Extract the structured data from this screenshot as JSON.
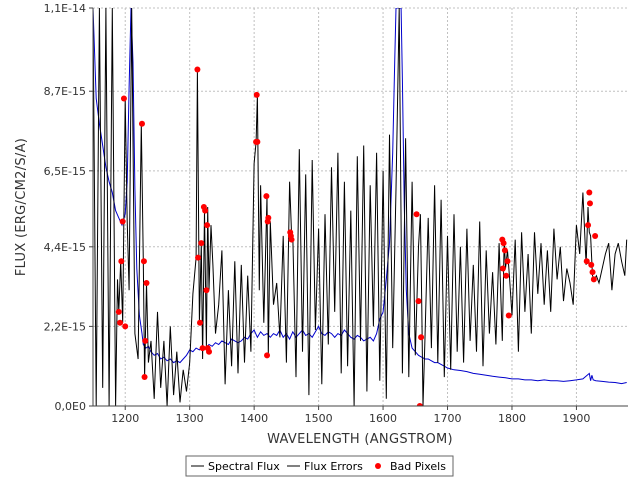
{
  "chart_data": {
    "type": "line",
    "title": "",
    "xlabel": "WAVELENGTH (ANGSTROM)",
    "ylabel": "FLUX (ERG/CM2/S/A)",
    "xlim": [
      1150,
      1980
    ],
    "ylim": [
      0,
      1.1e-14
    ],
    "x_ticks": [
      1200,
      1300,
      1400,
      1500,
      1600,
      1700,
      1800,
      1900
    ],
    "x_tick_labels": [
      "1200",
      "1300",
      "1400",
      "1500",
      "1600",
      "1700",
      "1800",
      "1900"
    ],
    "y_ticks": [
      0,
      2.2e-15,
      4.4e-15,
      6.5e-15,
      8.7e-15,
      1.1e-14
    ],
    "y_tick_labels": [
      "0,0E0",
      "2,2E-15",
      "4,4E-15",
      "6,5E-15",
      "8,7E-15",
      "1,1E-14"
    ],
    "grid": true,
    "legend_position": "bottom",
    "series": [
      {
        "name": "Spectral Flux",
        "color": "#000000",
        "style": "line",
        "x": [
          1150,
          1155,
          1160,
          1165,
          1170,
          1175,
          1180,
          1185,
          1188,
          1190,
          1193,
          1196,
          1200,
          1203,
          1206,
          1210,
          1215,
          1220,
          1225,
          1228,
          1230,
          1233,
          1236,
          1240,
          1245,
          1250,
          1255,
          1260,
          1265,
          1270,
          1275,
          1280,
          1285,
          1290,
          1295,
          1300,
          1305,
          1310,
          1312,
          1315,
          1318,
          1320,
          1323,
          1326,
          1328,
          1330,
          1333,
          1336,
          1340,
          1345,
          1350,
          1355,
          1360,
          1365,
          1370,
          1375,
          1380,
          1385,
          1390,
          1395,
          1400,
          1403,
          1405,
          1408,
          1410,
          1415,
          1420,
          1422,
          1425,
          1430,
          1435,
          1440,
          1445,
          1450,
          1455,
          1458,
          1460,
          1465,
          1470,
          1475,
          1480,
          1485,
          1490,
          1495,
          1500,
          1505,
          1510,
          1515,
          1520,
          1525,
          1530,
          1535,
          1540,
          1545,
          1550,
          1555,
          1560,
          1565,
          1570,
          1575,
          1580,
          1585,
          1590,
          1595,
          1600,
          1605,
          1610,
          1615,
          1620,
          1625,
          1630,
          1635,
          1640,
          1645,
          1650,
          1655,
          1658,
          1660,
          1662,
          1665,
          1670,
          1675,
          1680,
          1685,
          1690,
          1695,
          1700,
          1705,
          1710,
          1715,
          1720,
          1725,
          1730,
          1735,
          1740,
          1745,
          1750,
          1755,
          1760,
          1765,
          1770,
          1775,
          1780,
          1785,
          1788,
          1790,
          1793,
          1796,
          1800,
          1805,
          1810,
          1815,
          1820,
          1825,
          1830,
          1835,
          1840,
          1845,
          1850,
          1855,
          1860,
          1865,
          1870,
          1875,
          1880,
          1885,
          1890,
          1895,
          1900,
          1905,
          1910,
          1915,
          1918,
          1920,
          1922,
          1925,
          1928,
          1931,
          1935,
          1940,
          1945,
          1950,
          1955,
          1960,
          1965,
          1970,
          1975,
          1978
        ],
        "y": [
          1.1e-14,
          0,
          1.1e-14,
          5e-16,
          1.1e-14,
          0,
          1.1e-14,
          0,
          3.5e-15,
          2.6e-15,
          4e-15,
          2.3e-15,
          8.5e-15,
          5.1e-15,
          3.2e-15,
          1.1e-14,
          2e-15,
          1.3e-15,
          7.8e-15,
          4e-15,
          8e-16,
          3.4e-15,
          1.2e-15,
          1.8e-15,
          2e-16,
          2.6e-15,
          5e-16,
          1.8e-15,
          0,
          2.2e-15,
          3e-16,
          1.5e-15,
          1e-16,
          1e-15,
          4e-16,
          1.2e-15,
          3.1e-15,
          4.1e-15,
          9.3e-15,
          2.3e-15,
          4.5e-15,
          1.3e-15,
          5.4e-15,
          1.6e-15,
          5.5e-15,
          3.2e-15,
          5e-15,
          3.9e-15,
          2e-15,
          2.8e-15,
          4.3e-15,
          6e-16,
          3.2e-15,
          1.1e-15,
          4e-15,
          9e-16,
          3.9e-15,
          1.2e-15,
          3.6e-15,
          1.5e-15,
          6.7e-15,
          7.3e-15,
          8.6e-15,
          3.2e-15,
          6.1e-15,
          2.3e-15,
          5.8e-15,
          1.4e-15,
          5.1e-15,
          2.8e-15,
          3.4e-15,
          1.9e-15,
          4.7e-15,
          1.2e-15,
          6.2e-15,
          4.8e-15,
          4.7e-15,
          8e-16,
          7.1e-15,
          1.5e-15,
          6.4e-15,
          3e-16,
          6.8e-15,
          2.1e-15,
          4.9e-15,
          6e-16,
          5.3e-15,
          1.7e-15,
          6.6e-15,
          2.6e-15,
          7e-15,
          9e-16,
          6.2e-15,
          1.1e-15,
          5.4e-15,
          0,
          6.9e-15,
          1.8e-15,
          7.2e-15,
          4e-16,
          6.1e-15,
          2.2e-15,
          7e-15,
          7e-16,
          6.5e-15,
          2e-16,
          7.5e-15,
          1.6e-15,
          6e-15,
          1.1e-14,
          9e-16,
          7.4e-15,
          8e-16,
          6.2e-15,
          1.4e-15,
          4.4e-15,
          5.3e-15,
          2.9e-15,
          0,
          1.9e-15,
          5.2e-15,
          1.6e-15,
          6.1e-15,
          1.2e-15,
          5.7e-15,
          8e-16,
          4.7e-15,
          1e-15,
          5.3e-15,
          1.5e-15,
          4.4e-15,
          1.2e-15,
          4.9e-15,
          1.8e-15,
          3.9e-15,
          1.5e-15,
          5.1e-15,
          1.1e-15,
          4.3e-15,
          2e-15,
          3.7e-15,
          1.7e-15,
          4.5e-15,
          1.8e-15,
          4.6e-15,
          3.8e-15,
          4.3e-15,
          3.6e-15,
          2.5e-15,
          4.6e-15,
          1.5e-15,
          4.8e-15,
          2.6e-15,
          4.2e-15,
          2e-15,
          4.8e-15,
          3.1e-15,
          4.5e-15,
          2.8e-15,
          4.3e-15,
          2.6e-15,
          4.9e-15,
          3.5e-15,
          4.4e-15,
          2.9e-15,
          3.8e-15,
          3.4e-15,
          2.8e-15,
          5e-15,
          4.2e-15,
          5.9e-15,
          3.9e-15,
          5.5e-15,
          4.8e-15,
          4.7e-15,
          3.6e-15,
          3.5e-15,
          3.6e-15,
          3.4e-15,
          3.8e-15,
          4.2e-15,
          4.5e-15,
          3.2e-15,
          4.2e-15,
          4.5e-15,
          4e-15,
          3.6e-15,
          4.6e-15
        ]
      },
      {
        "name": "Flux Errors",
        "color": "#0000cc",
        "style": "line",
        "x": [
          1150,
          1155,
          1160,
          1165,
          1170,
          1175,
          1180,
          1185,
          1190,
          1195,
          1200,
          1203,
          1206,
          1209,
          1212,
          1215,
          1218,
          1222,
          1226,
          1228,
          1232,
          1236,
          1240,
          1245,
          1250,
          1255,
          1260,
          1265,
          1270,
          1275,
          1280,
          1285,
          1290,
          1295,
          1300,
          1305,
          1310,
          1315,
          1320,
          1325,
          1330,
          1335,
          1340,
          1345,
          1350,
          1355,
          1360,
          1365,
          1370,
          1375,
          1380,
          1385,
          1390,
          1395,
          1400,
          1405,
          1410,
          1415,
          1420,
          1425,
          1430,
          1435,
          1440,
          1445,
          1450,
          1455,
          1460,
          1465,
          1470,
          1475,
          1480,
          1485,
          1490,
          1495,
          1500,
          1505,
          1510,
          1515,
          1520,
          1525,
          1530,
          1535,
          1540,
          1545,
          1550,
          1555,
          1560,
          1565,
          1570,
          1575,
          1580,
          1585,
          1590,
          1595,
          1600,
          1605,
          1610,
          1615,
          1618,
          1620,
          1622,
          1625,
          1628,
          1630,
          1633,
          1636,
          1640,
          1645,
          1650,
          1655,
          1660,
          1665,
          1670,
          1675,
          1680,
          1685,
          1690,
          1695,
          1700,
          1710,
          1720,
          1730,
          1740,
          1750,
          1760,
          1770,
          1780,
          1790,
          1800,
          1810,
          1820,
          1830,
          1840,
          1850,
          1860,
          1870,
          1880,
          1890,
          1900,
          1910,
          1920,
          1922,
          1924,
          1926,
          1930,
          1940,
          1950,
          1960,
          1970,
          1978
        ],
        "y": [
          1.1e-14,
          8.5e-15,
          7.8e-15,
          7.2e-15,
          6.6e-15,
          6.2e-15,
          5.9e-15,
          5.4e-15,
          5.2e-15,
          5e-15,
          5.3e-15,
          6.2e-15,
          8.8e-15,
          1.1e-14,
          9.5e-15,
          6e-15,
          3.8e-15,
          2.5e-15,
          2e-15,
          1.7e-15,
          1.6e-15,
          1.65e-15,
          1.5e-15,
          1.4e-15,
          1.45e-15,
          1.3e-15,
          1.35e-15,
          1.25e-15,
          1.3e-15,
          1.2e-15,
          1.25e-15,
          1.2e-15,
          1.3e-15,
          1.4e-15,
          1.55e-15,
          1.5e-15,
          1.6e-15,
          1.55e-15,
          1.65e-15,
          1.6e-15,
          1.7e-15,
          1.65e-15,
          1.75e-15,
          1.7e-15,
          1.8e-15,
          1.75e-15,
          1.7e-15,
          1.85e-15,
          1.8e-15,
          1.75e-15,
          1.8e-15,
          1.9e-15,
          1.85e-15,
          2e-15,
          2.1e-15,
          1.9e-15,
          2.05e-15,
          1.95e-15,
          2e-15,
          1.9e-15,
          2e-15,
          1.95e-15,
          2.1e-15,
          1.9e-15,
          2e-15,
          1.85e-15,
          2.05e-15,
          1.9e-15,
          2e-15,
          2.1e-15,
          1.95e-15,
          2e-15,
          1.9e-15,
          2.05e-15,
          2.2e-15,
          2e-15,
          1.95e-15,
          2.05e-15,
          2e-15,
          1.9e-15,
          2e-15,
          1.95e-15,
          2.1e-15,
          2e-15,
          1.9e-15,
          1.85e-15,
          1.95e-15,
          1.9e-15,
          1.8e-15,
          1.85e-15,
          1.9e-15,
          1.8e-15,
          2e-15,
          2.4e-15,
          2.6e-15,
          3.5e-15,
          4.5e-15,
          7e-15,
          9.5e-15,
          1.1e-14,
          1.1e-14,
          1.1e-14,
          1.1e-14,
          9e-15,
          5.5e-15,
          3.2e-15,
          2e-15,
          1.6e-15,
          1.5e-15,
          1.4e-15,
          1.35e-15,
          1.3e-15,
          1.3e-15,
          1.25e-15,
          1.2e-15,
          1.2e-15,
          1.15e-15,
          1.1e-15,
          1.05e-15,
          1e-15,
          9.8e-16,
          9.5e-16,
          9e-16,
          8.8e-16,
          8.5e-16,
          8.2e-16,
          8e-16,
          7.8e-16,
          7.5e-16,
          7.5e-16,
          7.2e-16,
          7.2e-16,
          7e-16,
          7.2e-16,
          7e-16,
          7e-16,
          6.8e-16,
          7e-16,
          7.2e-16,
          7.5e-16,
          9e-16,
          7e-16,
          8.5e-16,
          7.2e-16,
          7e-16,
          6.8e-16,
          6.6e-16,
          6.5e-16,
          6.2e-16,
          6.5e-16
        ]
      },
      {
        "name": "Bad Pixels",
        "color": "#ff0000",
        "style": "scatter",
        "x": [
          1190,
          1192,
          1194,
          1196,
          1198,
          1200,
          1226,
          1229,
          1230,
          1231,
          1233,
          1312,
          1313,
          1316,
          1318,
          1320,
          1322,
          1324,
          1326,
          1327,
          1328,
          1330,
          1403,
          1404,
          1405,
          1419,
          1420,
          1421,
          1422,
          1456,
          1457,
          1458,
          1652,
          1655,
          1657,
          1659,
          1785,
          1786,
          1787,
          1789,
          1791,
          1793,
          1795,
          1916,
          1918,
          1920,
          1921,
          1923,
          1925,
          1927,
          1929
        ],
        "y": [
          2.6e-15,
          2.3e-15,
          4e-15,
          5.1e-15,
          8.5e-15,
          2.2e-15,
          7.8e-15,
          4e-15,
          8e-16,
          1.8e-15,
          3.4e-15,
          9.3e-15,
          4.1e-15,
          2.3e-15,
          4.5e-15,
          1.6e-15,
          5.5e-15,
          5.4e-15,
          3.2e-15,
          5e-15,
          1.6e-15,
          1.5e-15,
          7.3e-15,
          8.6e-15,
          7.3e-15,
          5.8e-15,
          1.4e-15,
          5.1e-15,
          5.2e-15,
          4.8e-15,
          4.7e-15,
          4.6e-15,
          5.3e-15,
          2.9e-15,
          0,
          1.9e-15,
          4.6e-15,
          3.8e-15,
          4.5e-15,
          4.3e-15,
          3.6e-15,
          4e-15,
          2.5e-15,
          4e-15,
          5e-15,
          5.9e-15,
          5.6e-15,
          3.9e-15,
          3.7e-15,
          3.5e-15,
          4.7e-15
        ]
      }
    ]
  }
}
